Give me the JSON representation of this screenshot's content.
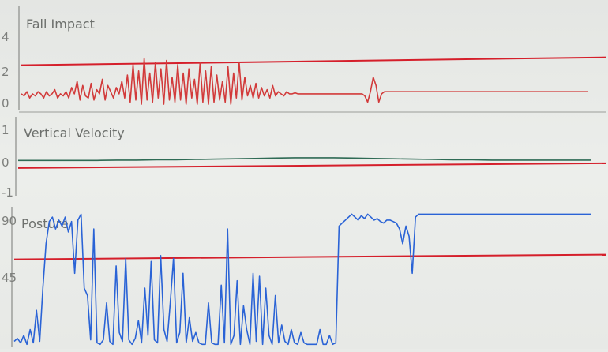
{
  "chart_data": [
    {
      "type": "line",
      "title": "Fall Impact",
      "yticks": [
        "4",
        "2",
        "0"
      ],
      "ylim": [
        0,
        5
      ],
      "threshold": 2.4,
      "colors": {
        "series": "#d23a3a",
        "threshold": "#d51f2b"
      },
      "series": [
        {
          "values": [
            0.8,
            0.7,
            0.9,
            0.6,
            0.8,
            0.7,
            0.9,
            0.8,
            0.6,
            0.9,
            0.7,
            0.8,
            1.0,
            0.6,
            0.8,
            0.7,
            0.9,
            0.6,
            1.1,
            0.8,
            1.4,
            0.5,
            1.2,
            0.7,
            0.6,
            1.3,
            0.5,
            1.0,
            0.8,
            1.5,
            0.5,
            1.2,
            0.9,
            0.6,
            1.1,
            0.8,
            1.4,
            0.6,
            1.7,
            0.4,
            2.2,
            0.5,
            1.9,
            0.3,
            2.5,
            0.5,
            1.8,
            0.4,
            2.3,
            0.6,
            2.0,
            0.3,
            2.4,
            0.5,
            1.6,
            0.4,
            2.2,
            0.5,
            1.8,
            0.3,
            2.0,
            0.6,
            1.5,
            0.3,
            2.3,
            0.4,
            1.9,
            0.3,
            2.1,
            0.4,
            1.7,
            0.5,
            1.4,
            0.4,
            2.1,
            0.3,
            1.8,
            0.6,
            2.3,
            0.5,
            1.6,
            0.7,
            1.2,
            0.6,
            1.3,
            0.6,
            1.1,
            0.7,
            1.0,
            0.6,
            1.2,
            0.7,
            0.9,
            0.8,
            0.7,
            0.9,
            0.8,
            0.8,
            0.85,
            0.8,
            0.8,
            0.8,
            0.8,
            0.8,
            0.8,
            0.8,
            0.8,
            0.8,
            0.8,
            0.8,
            0.8,
            0.8,
            0.8,
            0.8,
            0.8,
            0.8,
            0.8,
            0.8,
            0.8,
            0.8,
            0.8,
            0.8,
            0.8,
            0.7,
            0.4,
            0.9,
            1.6,
            1.2,
            0.4,
            0.8,
            0.9,
            0.9,
            0.9,
            0.9,
            0.9,
            0.9,
            0.9,
            0.9,
            0.9,
            0.9,
            0.9,
            0.9,
            0.9,
            0.9,
            0.9,
            0.9,
            0.9,
            0.9,
            0.9,
            0.9,
            0.9,
            0.9,
            0.9,
            0.9,
            0.9,
            0.9,
            0.9,
            0.9,
            0.9,
            0.9,
            0.9,
            0.9,
            0.9,
            0.9,
            0.9,
            0.9,
            0.9,
            0.9,
            0.9,
            0.9,
            0.9,
            0.9,
            0.9,
            0.9,
            0.9,
            0.9,
            0.9,
            0.9,
            0.9,
            0.9,
            0.9,
            0.9,
            0.9,
            0.9,
            0.9,
            0.9,
            0.9,
            0.9,
            0.9,
            0.9,
            0.9,
            0.9,
            0.9,
            0.9,
            0.9,
            0.9,
            0.9,
            0.9,
            0.9,
            0.9,
            0.9,
            0.9,
            0.9,
            0.9
          ]
        }
      ]
    },
    {
      "type": "line",
      "title": "Vertical Velocity",
      "yticks": [
        "1",
        "0",
        "-1"
      ],
      "ylim": [
        -1.15,
        1.2
      ],
      "threshold": -0.3,
      "colors": {
        "series": "#2f6b55",
        "threshold": "#d51f2b"
      },
      "series": [
        {
          "values": [
            -0.1,
            -0.1,
            -0.1,
            -0.1,
            -0.1,
            -0.09,
            -0.09,
            -0.08,
            -0.08,
            -0.07,
            -0.06,
            -0.05,
            -0.04,
            -0.03,
            -0.02,
            -0.02,
            -0.02,
            -0.03,
            -0.04,
            -0.05,
            -0.06,
            -0.07,
            -0.08,
            -0.08,
            -0.09,
            -0.09,
            -0.09,
            -0.09,
            -0.09,
            -0.09
          ]
        }
      ]
    },
    {
      "type": "line",
      "title": "Posture",
      "yticks": [
        "90",
        "45"
      ],
      "ylim": [
        0,
        95
      ],
      "threshold": 60,
      "colors": {
        "series": "#2a63d6",
        "threshold": "#d51f2b"
      },
      "series": [
        {
          "values": [
            4,
            6,
            3,
            8,
            2,
            12,
            3,
            25,
            4,
            40,
            70,
            85,
            88,
            80,
            86,
            82,
            88,
            78,
            85,
            50,
            86,
            90,
            40,
            35,
            5,
            80,
            3,
            2,
            5,
            30,
            4,
            2,
            55,
            10,
            4,
            60,
            5,
            2,
            6,
            18,
            3,
            40,
            8,
            58,
            5,
            3,
            62,
            12,
            4,
            30,
            60,
            3,
            10,
            50,
            3,
            20,
            4,
            10,
            3,
            2,
            2,
            30,
            3,
            2,
            2,
            42,
            3,
            80,
            2,
            8,
            45,
            2,
            28,
            12,
            2,
            50,
            4,
            48,
            2,
            40,
            8,
            2,
            35,
            3,
            15,
            4,
            2,
            12,
            3,
            2,
            10,
            3,
            2,
            2,
            2,
            2,
            12,
            2,
            2,
            8,
            2,
            3,
            82,
            84,
            86,
            88,
            90,
            88,
            86,
            89,
            87,
            90,
            88,
            86,
            87,
            85,
            84,
            86,
            86,
            85,
            84,
            80,
            70,
            82,
            75,
            50,
            88,
            90,
            90,
            90,
            90,
            90,
            90,
            90,
            90,
            90,
            90,
            90,
            90,
            90,
            90,
            90,
            90,
            90,
            90,
            90,
            90,
            90,
            90,
            90,
            90,
            90,
            90,
            90,
            90,
            90,
            90,
            90,
            90,
            90,
            90,
            90,
            90,
            90,
            90,
            90,
            90,
            90,
            90,
            90,
            90,
            90,
            90,
            90,
            90,
            90,
            90,
            90,
            90,
            90,
            90,
            90
          ]
        }
      ]
    }
  ]
}
